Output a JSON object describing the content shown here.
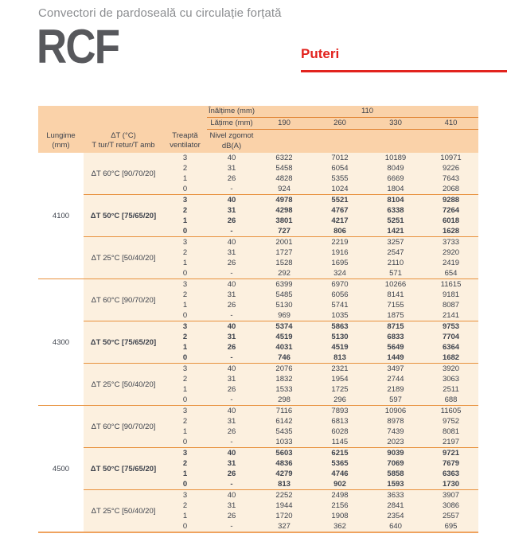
{
  "page": {
    "subtitle": "Convectori de pardoseală cu circulație forțată",
    "product_code": "RCF",
    "tab_label": "Puteri"
  },
  "colors": {
    "accent_red": "#e2231e",
    "header_peach": "#fad2a9",
    "body_cream": "#fcf0df",
    "line_orange": "#e8913d",
    "text_dark": "#3d424c"
  },
  "table": {
    "height_row": {
      "label": "Înălțime (mm)",
      "value": "110"
    },
    "width_row": {
      "label": "Lățime (mm)",
      "values": [
        "190",
        "260",
        "330",
        "410"
      ]
    },
    "columns": {
      "length_l1": "Lungime",
      "length_l2": "(mm)",
      "dt_l1": "ΔT (°C)",
      "dt_l2": "T tur/T retur/T amb",
      "fan_l1": "Treaptă",
      "fan_l2": "ventilator",
      "noise_l1": "Nivel zgomot",
      "noise_l2": "dB(A)"
    },
    "blocks": [
      {
        "length": "4100",
        "groups": [
          {
            "dt": "ΔT 60°C [90/70/20]",
            "bold": false,
            "rows": [
              [
                "3",
                "40",
                "6322",
                "7012",
                "10189",
                "10971"
              ],
              [
                "2",
                "31",
                "5458",
                "6054",
                "8049",
                "9226"
              ],
              [
                "1",
                "26",
                "4828",
                "5355",
                "6669",
                "7643"
              ],
              [
                "0",
                "-",
                "924",
                "1024",
                "1804",
                "2068"
              ]
            ]
          },
          {
            "dt": "ΔT 50°C [75/65/20]",
            "bold": true,
            "rows": [
              [
                "3",
                "40",
                "4978",
                "5521",
                "8104",
                "9288"
              ],
              [
                "2",
                "31",
                "4298",
                "4767",
                "6338",
                "7264"
              ],
              [
                "1",
                "26",
                "3801",
                "4217",
                "5251",
                "6018"
              ],
              [
                "0",
                "-",
                "727",
                "806",
                "1421",
                "1628"
              ]
            ]
          },
          {
            "dt": "ΔT 25°C [50/40/20]",
            "bold": false,
            "rows": [
              [
                "3",
                "40",
                "2001",
                "2219",
                "3257",
                "3733"
              ],
              [
                "2",
                "31",
                "1727",
                "1916",
                "2547",
                "2920"
              ],
              [
                "1",
                "26",
                "1528",
                "1695",
                "2110",
                "2419"
              ],
              [
                "0",
                "-",
                "292",
                "324",
                "571",
                "654"
              ]
            ]
          }
        ]
      },
      {
        "length": "4300",
        "groups": [
          {
            "dt": "ΔT 60°C [90/70/20]",
            "bold": false,
            "rows": [
              [
                "3",
                "40",
                "6399",
                "6970",
                "10266",
                "11615"
              ],
              [
                "2",
                "31",
                "5485",
                "6056",
                "8141",
                "9181"
              ],
              [
                "1",
                "26",
                "5130",
                "5741",
                "7155",
                "8087"
              ],
              [
                "0",
                "-",
                "969",
                "1035",
                "1875",
                "2141"
              ]
            ]
          },
          {
            "dt": "ΔT 50°C [75/65/20]",
            "bold": true,
            "rows": [
              [
                "3",
                "40",
                "5374",
                "5863",
                "8715",
                "9753"
              ],
              [
                "2",
                "31",
                "4519",
                "5130",
                "6833",
                "7704"
              ],
              [
                "1",
                "26",
                "4031",
                "4519",
                "5649",
                "6364"
              ],
              [
                "0",
                "-",
                "746",
                "813",
                "1449",
                "1682"
              ]
            ]
          },
          {
            "dt": "ΔT 25°C [50/40/20]",
            "bold": false,
            "rows": [
              [
                "3",
                "40",
                "2076",
                "2321",
                "3497",
                "3920"
              ],
              [
                "2",
                "31",
                "1832",
                "1954",
                "2744",
                "3063"
              ],
              [
                "1",
                "26",
                "1533",
                "1725",
                "2189",
                "2511"
              ],
              [
                "0",
                "-",
                "298",
                "296",
                "597",
                "688"
              ]
            ]
          }
        ]
      },
      {
        "length": "4500",
        "groups": [
          {
            "dt": "ΔT 60°C [90/70/20]",
            "bold": false,
            "rows": [
              [
                "3",
                "40",
                "7116",
                "7893",
                "10906",
                "11605"
              ],
              [
                "2",
                "31",
                "6142",
                "6813",
                "8978",
                "9752"
              ],
              [
                "1",
                "26",
                "5435",
                "6028",
                "7439",
                "8081"
              ],
              [
                "0",
                "-",
                "1033",
                "1145",
                "2023",
                "2197"
              ]
            ]
          },
          {
            "dt": "ΔT 50°C [75/65/20]",
            "bold": true,
            "rows": [
              [
                "3",
                "40",
                "5603",
                "6215",
                "9039",
                "9721"
              ],
              [
                "2",
                "31",
                "4836",
                "5365",
                "7069",
                "7679"
              ],
              [
                "1",
                "26",
                "4279",
                "4746",
                "5858",
                "6363"
              ],
              [
                "0",
                "-",
                "813",
                "902",
                "1593",
                "1730"
              ]
            ]
          },
          {
            "dt": "ΔT 25°C [50/40/20]",
            "bold": false,
            "rows": [
              [
                "3",
                "40",
                "2252",
                "2498",
                "3633",
                "3907"
              ],
              [
                "2",
                "31",
                "1944",
                "2156",
                "2841",
                "3086"
              ],
              [
                "1",
                "26",
                "1720",
                "1908",
                "2354",
                "2557"
              ],
              [
                "0",
                "-",
                "327",
                "362",
                "640",
                "695"
              ]
            ]
          }
        ]
      }
    ]
  }
}
